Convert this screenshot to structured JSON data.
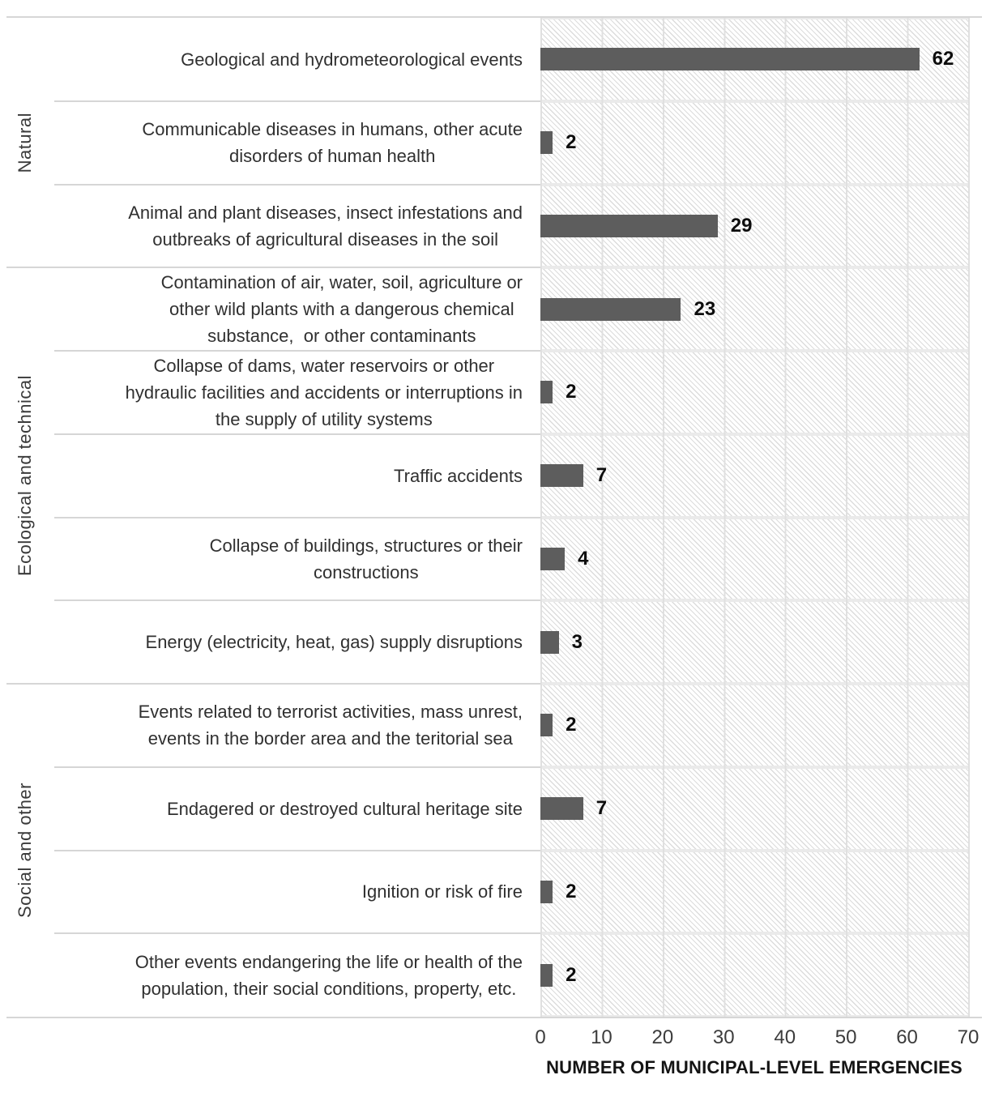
{
  "chart_data": {
    "type": "bar",
    "orientation": "horizontal",
    "title": "",
    "xlabel": "NUMBER OF MUNICIPAL-LEVEL EMERGENCIES",
    "ylabel": "",
    "xlim": [
      0,
      70
    ],
    "x_ticks": [
      "0",
      "10",
      "20",
      "30",
      "40",
      "50",
      "60",
      "70"
    ],
    "legend": "none",
    "grid": "vertical major gridlines every 10, hatched plot background",
    "groups": [
      {
        "label": "Natural",
        "row_start": 0,
        "row_count": 3
      },
      {
        "label": "Ecological and technical",
        "row_start": 3,
        "row_count": 5
      },
      {
        "label": "Social and other",
        "row_start": 8,
        "row_count": 4
      }
    ],
    "categories": [
      "Geological and hydrometeorological events",
      "Communicable diseases in humans, other acute\ndisorders of human health",
      "Animal and plant diseases, insect infestations and\noutbreaks of agricultural diseases in the soil",
      "Contamination of air, water, soil, agriculture or\nother wild plants with a dangerous chemical\nsubstance,  or other contaminants",
      "Collapse of dams, water reservoirs or other\nhydraulic facilities and accidents or interruptions in\nthe supply of utility systems",
      "Traffic accidents",
      "Collapse of buildings, structures or their\nconstructions",
      "Energy (electricity, heat, gas) supply disruptions",
      "Events related to terrorist activities, mass unrest,\nevents in the border area and the teritorial sea",
      "Endagered or destroyed cultural heritage site",
      "Ignition or risk of fire",
      "Other events endangering the life or health of the\npopulation, their social conditions, property, etc."
    ],
    "values": [
      62,
      2,
      29,
      23,
      2,
      7,
      4,
      3,
      2,
      7,
      2,
      2
    ],
    "colors": {
      "bar": "#5d5d5d",
      "gridline": "#e0e0e0",
      "hatch": "#dcdcdc",
      "separator": "#d6d6d6",
      "value_label": "#0d0d0d"
    }
  }
}
